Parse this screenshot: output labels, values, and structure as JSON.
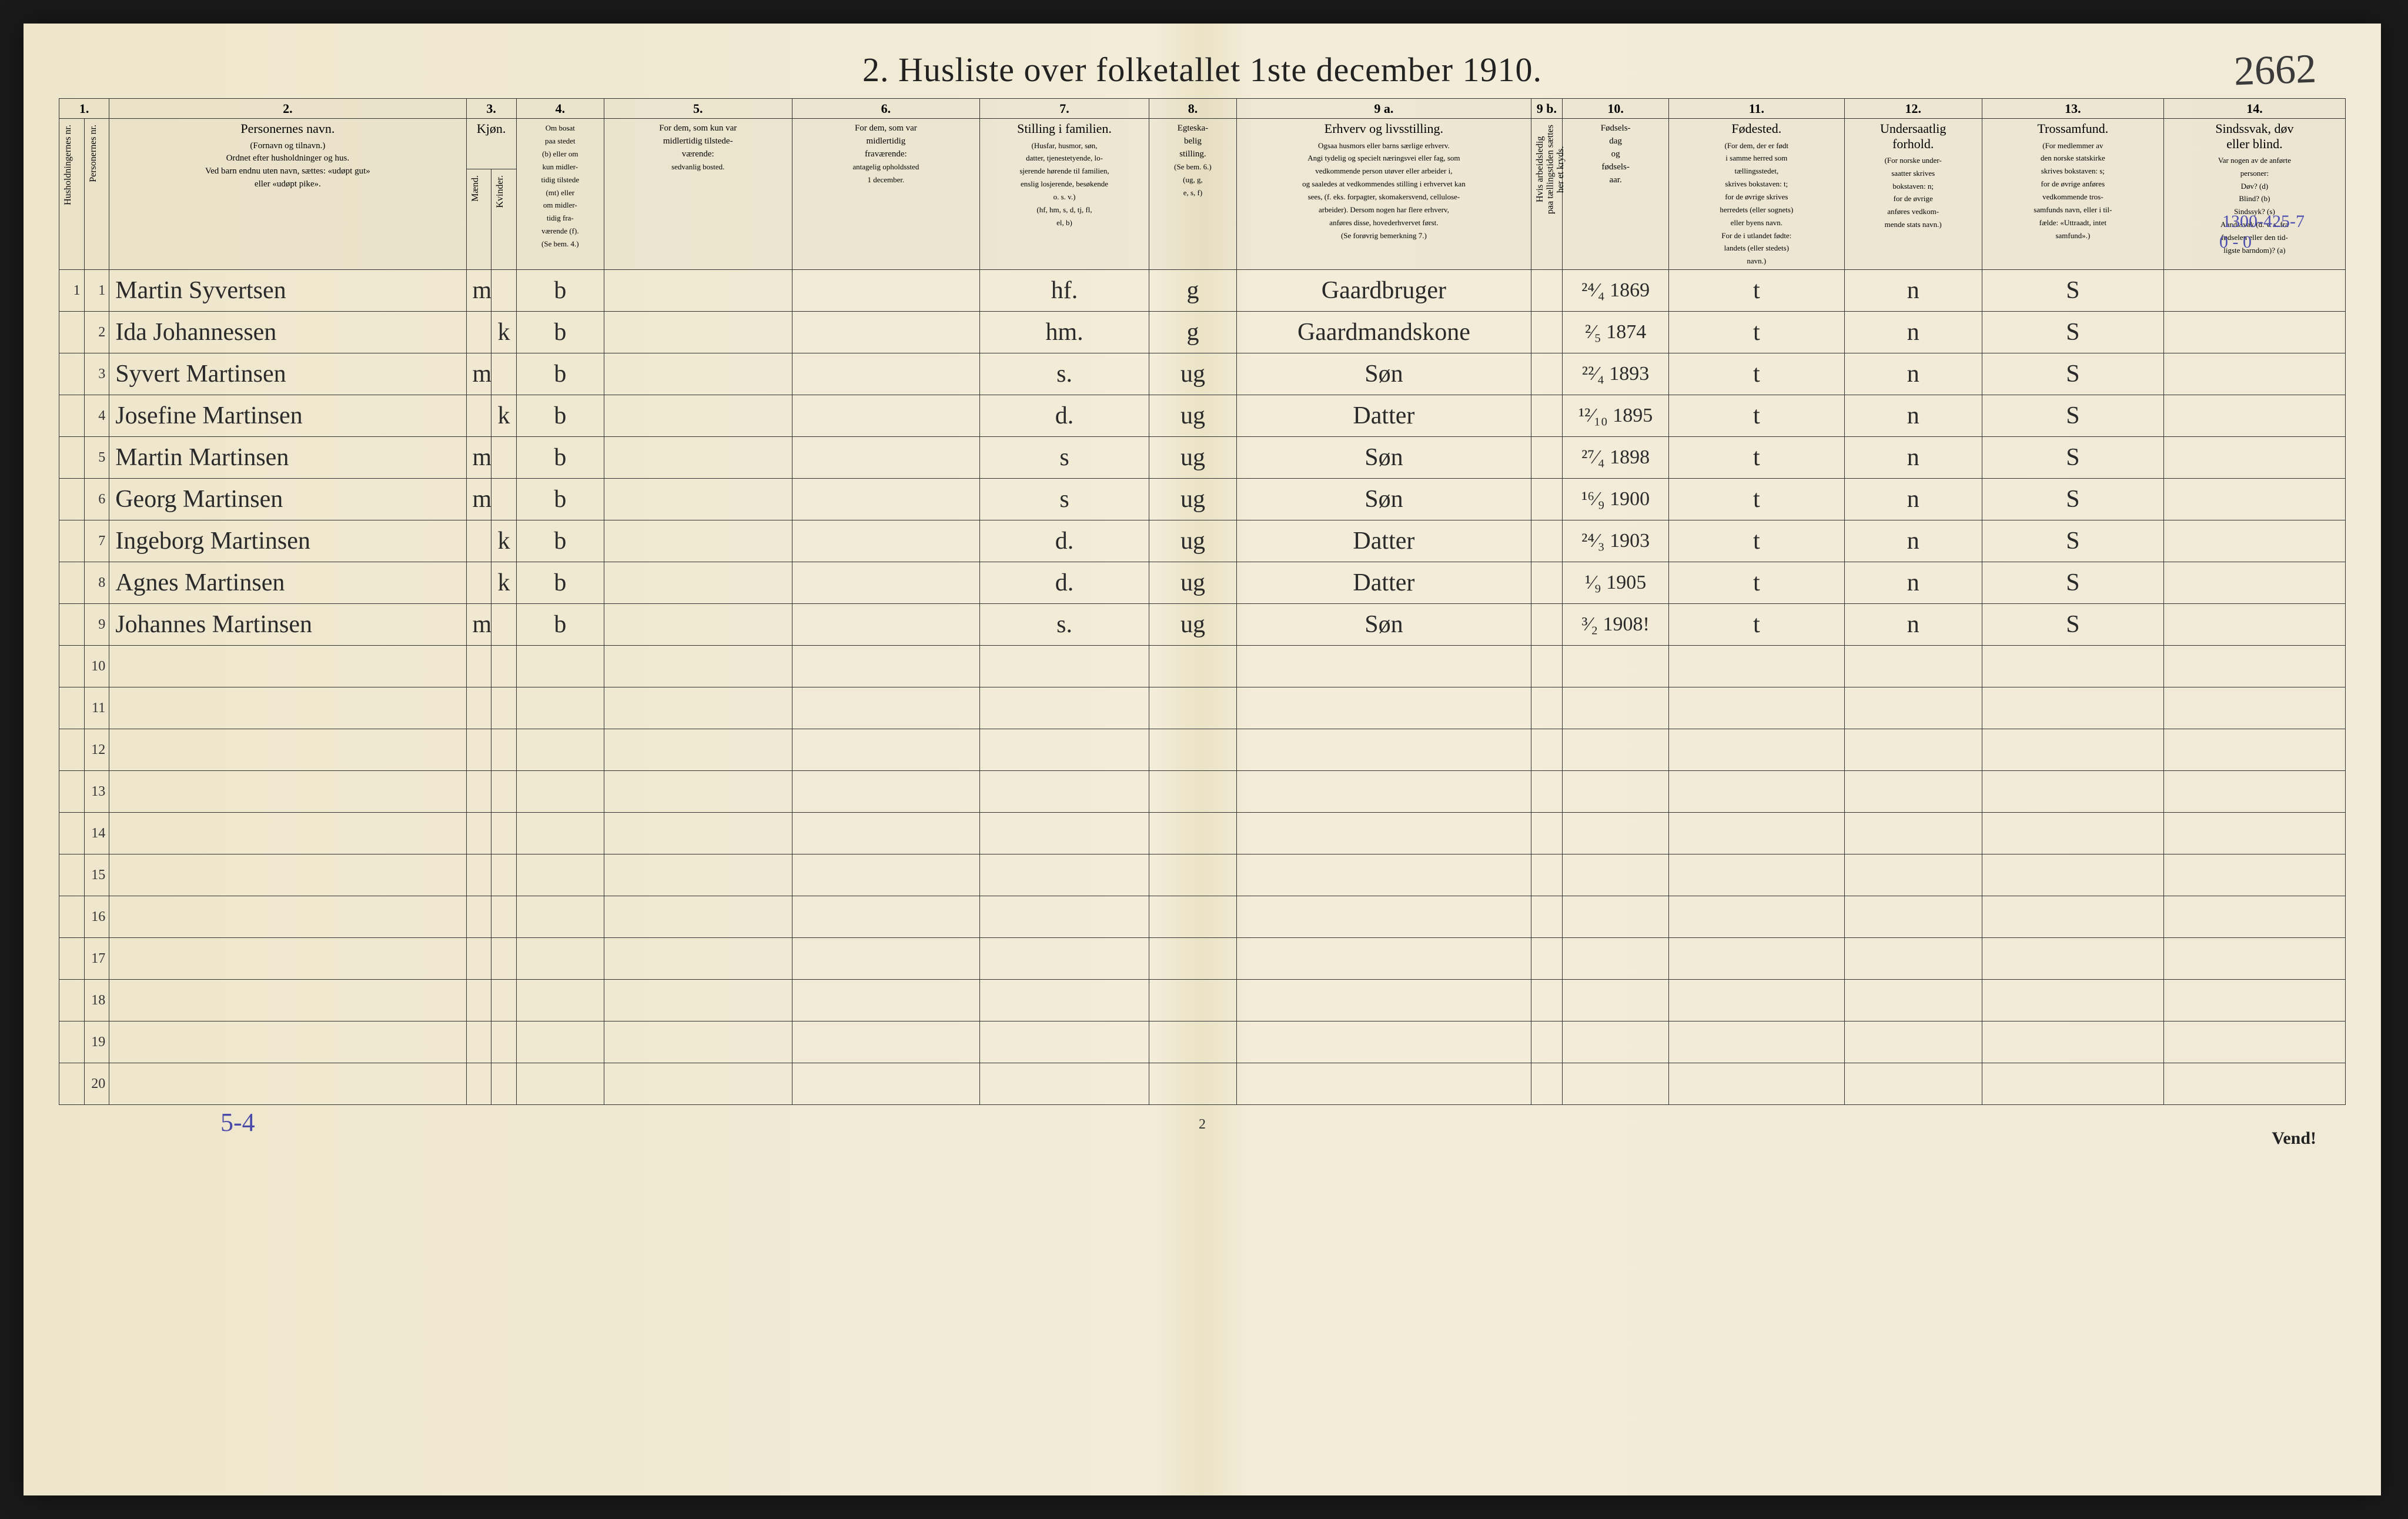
{
  "title": "2.  Husliste over folketallet 1ste december 1910.",
  "topRightHand": "2662",
  "marginNoteTop": "1300-425-7",
  "marginNoteTop2": "0 - 0",
  "footerLeft": "5-4",
  "footerCenter": "2",
  "footerRight": "Vend!",
  "colNumbers": [
    "1.",
    "2.",
    "3.",
    "4.",
    "5.",
    "6.",
    "7.",
    "8.",
    "9 a.",
    "9 b.",
    "10.",
    "11.",
    "12.",
    "13.",
    "14."
  ],
  "headers": {
    "h1": "Husholdningernes nr.",
    "h2": "Personernes nr.",
    "h3main": "Personernes navn.",
    "h3sub": "(Fornavn og tilnavn.)\nOrdnet efter husholdninger og hus.\nVed barn endnu uten navn, sættes: «udøpt gut»\neller «udøpt pike».",
    "h4main": "Kjøn.",
    "h4a": "Mænd.",
    "h4b": "Kvinder.",
    "h4mk": "m. | k.",
    "h5main": "Om bosat\npaa stedet\n(b) eller om\nkun midler-\ntidig tilstede\n(mt) eller\nom midler-\ntidig fra-\nværende (f).\n(Se bem. 4.)",
    "h6main": "For dem, som kun var\nmidlertidig tilstede-\nværende:",
    "h6sub": "sedvanlig bosted.",
    "h7main": "For dem, som var\nmidlertidig\nfraværende:",
    "h7sub": "antagelig opholdssted\n1 december.",
    "h8main": "Stilling i familien.",
    "h8sub": "(Husfar, husmor, søn,\ndatter, tjenestetyende, lo-\nsjerende hørende til familien,\nenslig losjerende, besøkende\no. s. v.)\n(hf, hm, s, d, tj, fl,\nel, b)",
    "h9main": "Egteska-\nbelig\nstilling.",
    "h9sub": "(Se bem. 6.)\n(ug, g,\ne, s, f)",
    "h10main": "Erhverv og livsstilling.",
    "h10sub": "Ogsaa husmors eller barns særlige erhverv.\nAngi tydelig og specielt næringsvei eller fag, som\nvedkommende person utøver eller arbeider i,\nog saaledes at vedkommendes stilling i erhvervet kan\nsees, (f. eks. forpagter, skomakersvend, cellulose-\narbeider). Dersom nogen har flere erhverv,\nanføres disse, hovederhvervet først.\n(Se forøvrig bemerkning 7.)",
    "h11": "Hvis arbeidsledig\npaa tællingstiden sættes\nher et kryds.",
    "h12main": "Fødsels-\ndag\nog\nfødsels-\naar.",
    "h13main": "Fødested.",
    "h13sub": "(For dem, der er født\ni samme herred som\ntællingsstedet,\nskrives bokstaven: t;\nfor de øvrige skrives\nherredets (eller sognets)\neller byens navn.\nFor de i utlandet fødte:\nlandets (eller stedets)\nnavn.)",
    "h14main": "Undersaatlig\nforhold.",
    "h14sub": "(For norske under-\nsaatter skrives\nbokstaven: n;\nfor de øvrige\nanføres vedkom-\nmende stats navn.)",
    "h15main": "Trossamfund.",
    "h15sub": "(For medlemmer av\nden norske statskirke\nskrives bokstaven: s;\nfor de øvrige anføres\nvedkommende tros-\nsamfunds navn, eller i til-\nfælde: «Uttraadt, intet\nsamfund».)",
    "h16main": "Sindssvak, døv\neller blind.",
    "h16sub": "Var nogen av de anførte\npersoner:\nDøv?        (d)\nBlind?      (b)\nSindssyk? (s)\nAandssvak (d. v. s. fra\nfødselen eller den tid-\nligste barndom)? (a)"
  },
  "rows": [
    {
      "hh": "1",
      "pn": "1",
      "name": "Martin Syvertsen",
      "m": "m",
      "k": "",
      "res": "b",
      "c6": "",
      "c7": "",
      "fam": "hf.",
      "mar": "g",
      "occ": "Gaardbruger",
      "x": "",
      "birth": "²⁴⁄₄ 1869",
      "place": "t",
      "nat": "n",
      "rel": "S",
      "dis": ""
    },
    {
      "hh": "",
      "pn": "2",
      "name": "Ida Johannessen",
      "m": "",
      "k": "k",
      "res": "b",
      "c6": "",
      "c7": "",
      "fam": "hm.",
      "mar": "g",
      "occ": "Gaardmandskone",
      "x": "",
      "birth": "²⁄₅ 1874",
      "place": "t",
      "nat": "n",
      "rel": "S",
      "dis": ""
    },
    {
      "hh": "",
      "pn": "3",
      "name": "Syvert Martinsen",
      "m": "m",
      "k": "",
      "res": "b",
      "c6": "",
      "c7": "",
      "fam": "s.",
      "mar": "ug",
      "occ": "Søn",
      "x": "",
      "birth": "²²⁄₄ 1893",
      "place": "t",
      "nat": "n",
      "rel": "S",
      "dis": ""
    },
    {
      "hh": "",
      "pn": "4",
      "name": "Josefine Martinsen",
      "m": "",
      "k": "k",
      "res": "b",
      "c6": "",
      "c7": "",
      "fam": "d.",
      "mar": "ug",
      "occ": "Datter",
      "x": "",
      "birth": "¹²⁄₁₀ 1895",
      "place": "t",
      "nat": "n",
      "rel": "S",
      "dis": ""
    },
    {
      "hh": "",
      "pn": "5",
      "name": "Martin Martinsen",
      "m": "m",
      "k": "",
      "res": "b",
      "c6": "",
      "c7": "",
      "fam": "s",
      "mar": "ug",
      "occ": "Søn",
      "x": "",
      "birth": "²⁷⁄₄ 1898",
      "place": "t",
      "nat": "n",
      "rel": "S",
      "dis": ""
    },
    {
      "hh": "",
      "pn": "6",
      "name": "Georg Martinsen",
      "m": "m",
      "k": "",
      "res": "b",
      "c6": "",
      "c7": "",
      "fam": "s",
      "mar": "ug",
      "occ": "Søn",
      "x": "",
      "birth": "¹⁶⁄₉ 1900",
      "place": "t",
      "nat": "n",
      "rel": "S",
      "dis": ""
    },
    {
      "hh": "",
      "pn": "7",
      "name": "Ingeborg Martinsen",
      "m": "",
      "k": "k",
      "res": "b",
      "c6": "",
      "c7": "",
      "fam": "d.",
      "mar": "ug",
      "occ": "Datter",
      "x": "",
      "birth": "²⁴⁄₃ 1903",
      "place": "t",
      "nat": "n",
      "rel": "S",
      "dis": ""
    },
    {
      "hh": "",
      "pn": "8",
      "name": "Agnes Martinsen",
      "m": "",
      "k": "k",
      "res": "b",
      "c6": "",
      "c7": "",
      "fam": "d.",
      "mar": "ug",
      "occ": "Datter",
      "x": "",
      "birth": "¹⁄₉ 1905",
      "place": "t",
      "nat": "n",
      "rel": "S",
      "dis": ""
    },
    {
      "hh": "",
      "pn": "9",
      "name": "Johannes Martinsen",
      "m": "m",
      "k": "",
      "res": "b",
      "c6": "",
      "c7": "",
      "fam": "s.",
      "mar": "ug",
      "occ": "Søn",
      "x": "",
      "birth": "³⁄₂ 1908!",
      "place": "t",
      "nat": "n",
      "rel": "S",
      "dis": ""
    }
  ],
  "emptyRows": [
    10,
    11,
    12,
    13,
    14,
    15,
    16,
    17,
    18,
    19,
    20
  ],
  "colors": {
    "paper": "#f0ead6",
    "ink": "#2a2a2a",
    "blueInk": "#5050b0",
    "border": "#333333"
  }
}
